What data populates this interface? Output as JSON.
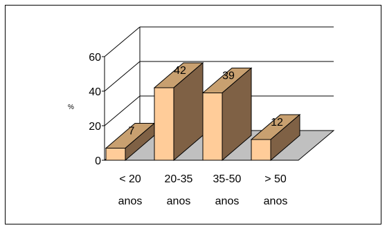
{
  "chart_data": {
    "type": "bar",
    "style": "3d-column",
    "categories": [
      [
        "< 20",
        "anos"
      ],
      [
        "20-35",
        "anos"
      ],
      [
        "35-50",
        "anos"
      ],
      [
        "> 50",
        "anos"
      ]
    ],
    "values": [
      7,
      42,
      39,
      12
    ],
    "data_labels": [
      "7",
      "42",
      "39",
      "12"
    ],
    "title": "",
    "xlabel": "",
    "ylabel": "%",
    "ylim": [
      0,
      60
    ],
    "yticks": [
      0,
      20,
      40,
      60
    ],
    "ytick_labels": [
      "0",
      "20",
      "40",
      "60"
    ],
    "grid": true,
    "legend": "none",
    "colors": {
      "bar_front": "#FFCC99",
      "bar_top": "#C8A070",
      "bar_side": "#7F6145",
      "floor": "#C0C0C0",
      "axis": "#000000"
    }
  }
}
